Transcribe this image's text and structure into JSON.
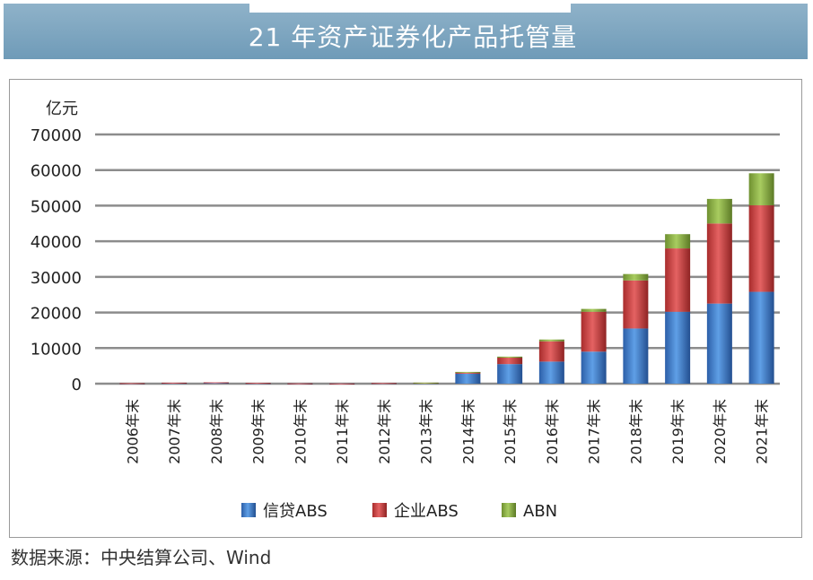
{
  "header": {
    "title": "21 年资产证券化产品托管量"
  },
  "source": "数据来源：中央结算公司、Wind",
  "chart_data": {
    "type": "bar",
    "stacked": true,
    "unit_label": "亿元",
    "ylim": [
      0,
      70000
    ],
    "yticks": [
      0,
      10000,
      20000,
      30000,
      40000,
      50000,
      60000,
      70000
    ],
    "grid": true,
    "legend_position": "bottom",
    "categories": [
      "2006年末",
      "2007年末",
      "2008年末",
      "2009年末",
      "2010年末",
      "2011年末",
      "2012年末",
      "2013年末",
      "2014年末",
      "2015年末",
      "2016年末",
      "2017年末",
      "2018年末",
      "2019年末",
      "2020年末",
      "2021年末"
    ],
    "series": [
      {
        "name": "信贷ABS",
        "color": "#3a78c8",
        "values": [
          100,
          200,
          300,
          150,
          60,
          30,
          150,
          200,
          2800,
          5500,
          6200,
          9000,
          15500,
          20200,
          22500,
          25800
        ]
      },
      {
        "name": "企业ABS",
        "color": "#c83a3a",
        "values": [
          50,
          80,
          80,
          60,
          30,
          20,
          30,
          50,
          400,
          1800,
          5700,
          11200,
          13500,
          17800,
          22500,
          24300
        ]
      },
      {
        "name": "ABN",
        "color": "#8aae40",
        "values": [
          0,
          0,
          0,
          0,
          0,
          0,
          0,
          50,
          100,
          300,
          500,
          800,
          1800,
          4000,
          6900,
          9000
        ]
      }
    ]
  }
}
